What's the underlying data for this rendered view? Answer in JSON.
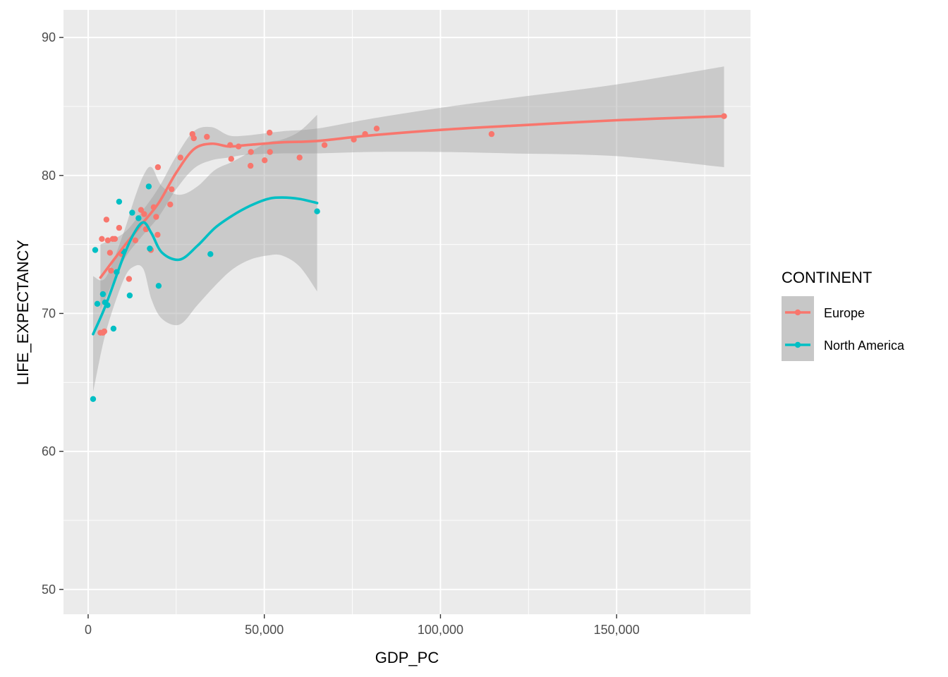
{
  "chart_data": {
    "type": "scatter",
    "title": "",
    "xlabel": "GDP_PC",
    "ylabel": "LIFE_EXPECTANCY",
    "xlim": [
      -7000,
      188000
    ],
    "ylim": [
      48.2,
      92.0
    ],
    "x_ticks": [
      0,
      50000,
      100000,
      150000
    ],
    "x_tick_labels": [
      "0",
      "50,000",
      "100,000",
      "150,000"
    ],
    "y_ticks": [
      50,
      60,
      70,
      80,
      90
    ],
    "y_tick_labels": [
      "50",
      "60",
      "70",
      "80",
      "90"
    ],
    "grid": true,
    "smoothing": "loess with confidence band",
    "legend": {
      "title": "CONTINENT",
      "position": "right",
      "entries": [
        "Europe",
        "North America"
      ]
    },
    "series": [
      {
        "name": "Europe",
        "color": "#F8766D",
        "points": [
          [
            3500,
            68.6
          ],
          [
            4200,
            68.6
          ],
          [
            4600,
            68.7
          ],
          [
            3900,
            75.4
          ],
          [
            5200,
            76.8
          ],
          [
            5600,
            75.3
          ],
          [
            6200,
            74.4
          ],
          [
            7000,
            75.4
          ],
          [
            7600,
            75.4
          ],
          [
            8800,
            76.2
          ],
          [
            6500,
            73.1
          ],
          [
            9500,
            74.3
          ],
          [
            11600,
            72.5
          ],
          [
            13400,
            75.3
          ],
          [
            15000,
            77.5
          ],
          [
            15900,
            77.2
          ],
          [
            16400,
            76.1
          ],
          [
            17800,
            74.6
          ],
          [
            19300,
            77.0
          ],
          [
            19700,
            75.7
          ],
          [
            19800,
            80.6
          ],
          [
            18600,
            77.7
          ],
          [
            23300,
            77.9
          ],
          [
            23700,
            79.0
          ],
          [
            26200,
            81.3
          ],
          [
            29600,
            83.0
          ],
          [
            30000,
            82.7
          ],
          [
            33700,
            82.8
          ],
          [
            40300,
            82.2
          ],
          [
            40600,
            81.2
          ],
          [
            42700,
            82.1
          ],
          [
            46200,
            81.7
          ],
          [
            46100,
            80.7
          ],
          [
            50100,
            81.1
          ],
          [
            51500,
            83.1
          ],
          [
            51600,
            81.7
          ],
          [
            60000,
            81.3
          ],
          [
            67100,
            82.2
          ],
          [
            75400,
            82.6
          ],
          [
            78600,
            83.0
          ],
          [
            81900,
            83.4
          ],
          [
            114500,
            83.0
          ],
          [
            180500,
            84.3
          ]
        ],
        "smooth": {
          "x": [
            3500,
            10000,
            15000,
            20000,
            25000,
            30000,
            35000,
            40000,
            45000,
            55000,
            65000,
            80000,
            100000,
            120000,
            150000,
            180500
          ],
          "y": [
            72.6,
            74.8,
            76.4,
            78.0,
            80.2,
            81.9,
            82.3,
            82.1,
            82.2,
            82.4,
            82.5,
            82.9,
            83.3,
            83.6,
            84.0,
            84.3
          ],
          "ci_lower": [
            70.3,
            73.8,
            75.5,
            77.0,
            79.0,
            80.5,
            81.1,
            81.3,
            81.5,
            81.6,
            81.6,
            81.7,
            81.7,
            81.6,
            81.4,
            80.6
          ],
          "ci_upper": [
            75.0,
            75.8,
            77.3,
            79.1,
            81.4,
            83.2,
            83.5,
            82.9,
            82.9,
            83.2,
            83.4,
            84.1,
            84.9,
            85.6,
            86.6,
            87.9
          ]
        }
      },
      {
        "name": "North America",
        "color": "#00BFC4",
        "points": [
          [
            1400,
            63.8
          ],
          [
            2000,
            74.6
          ],
          [
            2600,
            70.7
          ],
          [
            4200,
            71.4
          ],
          [
            4800,
            70.8
          ],
          [
            5500,
            70.6
          ],
          [
            7200,
            68.9
          ],
          [
            8100,
            73.0
          ],
          [
            8800,
            78.1
          ],
          [
            10000,
            74.5
          ],
          [
            11800,
            71.3
          ],
          [
            12500,
            77.3
          ],
          [
            14300,
            76.9
          ],
          [
            17200,
            79.2
          ],
          [
            17500,
            74.7
          ],
          [
            20000,
            72.0
          ],
          [
            34700,
            74.3
          ],
          [
            65000,
            77.4
          ]
        ],
        "smooth": {
          "x": [
            1400,
            5000,
            10000,
            13000,
            15700,
            18000,
            21000,
            26000,
            31000,
            36000,
            41000,
            46000,
            51000,
            55000,
            60000,
            65000
          ],
          "y": [
            68.5,
            70.6,
            74.1,
            75.8,
            76.6,
            75.8,
            74.4,
            73.9,
            74.9,
            76.2,
            77.1,
            77.8,
            78.3,
            78.4,
            78.3,
            78.0
          ],
          "ci_lower": [
            64.3,
            68.6,
            72.4,
            73.4,
            73.2,
            71.0,
            69.6,
            69.2,
            70.6,
            72.0,
            73.2,
            73.9,
            74.2,
            74.2,
            73.4,
            71.6
          ],
          "ci_upper": [
            72.7,
            72.6,
            75.8,
            78.2,
            80.0,
            80.6,
            79.2,
            78.6,
            79.2,
            80.4,
            81.0,
            81.7,
            82.4,
            82.6,
            83.2,
            84.4
          ]
        }
      }
    ]
  }
}
